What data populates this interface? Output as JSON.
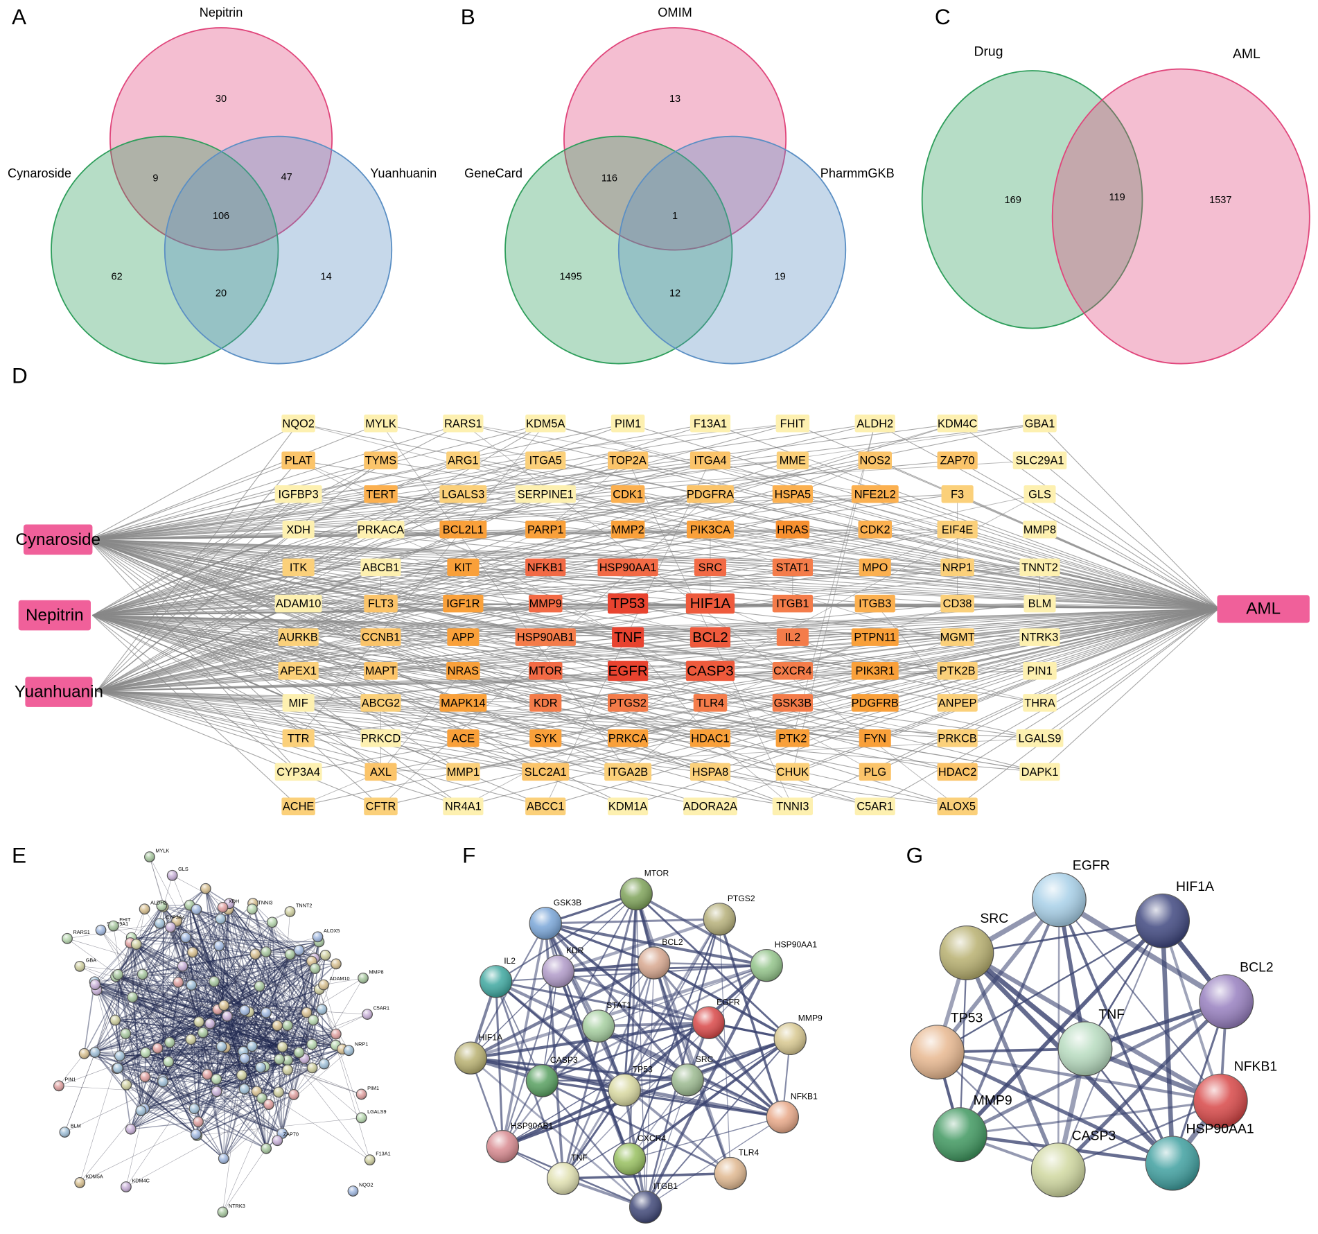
{
  "panels": {
    "a": {
      "letter": "A",
      "sets": {
        "top": "Nepitrin",
        "left": "Cynaroside",
        "right": "Yuanhuanin"
      },
      "regions": {
        "top": 30,
        "top_left": 9,
        "top_right": 47,
        "center": 106,
        "left": 62,
        "left_right": 20,
        "right": 14
      },
      "colors": {
        "top": "#e0457b",
        "left": "#2e9e5b",
        "right": "#5b8fc4"
      }
    },
    "b": {
      "letter": "B",
      "sets": {
        "top": "OMIM",
        "left": "GeneCard",
        "right": "PharmmGKB"
      },
      "regions": {
        "top": 13,
        "top_left": 116,
        "center": 1,
        "left": 1495,
        "left_right": 12,
        "right": 19
      },
      "colors": {
        "top": "#e0457b",
        "left": "#2e9e5b",
        "right": "#5b8fc4"
      }
    },
    "c": {
      "letter": "C",
      "sets": {
        "left": "Drug",
        "right": "AML"
      },
      "regions": {
        "left": 169,
        "center": 119,
        "right": 1537
      },
      "colors": {
        "left": "#2e9e5b",
        "right": "#e0457b"
      }
    },
    "d": {
      "letter": "D",
      "sources": [
        "Cynaroside",
        "Nepitrin",
        "Yuanhuanin"
      ],
      "target": "AML",
      "node_color": "#f0609a",
      "rows": [
        [
          {
            "label": "NQO2",
            "color": "#fdf0b0"
          },
          {
            "label": "MYLK",
            "color": "#fdf0b0"
          },
          {
            "label": "RARS1",
            "color": "#fdf0b0"
          },
          {
            "label": "KDM5A",
            "color": "#fdf0b0"
          },
          {
            "label": "PIM1",
            "color": "#fdf0b0"
          },
          {
            "label": "F13A1",
            "color": "#fdf0b0"
          },
          {
            "label": "FHIT",
            "color": "#fdf0b0"
          },
          {
            "label": "ALDH2",
            "color": "#fdf0b0"
          },
          {
            "label": "KDM4C",
            "color": "#fdf0b0"
          },
          {
            "label": "GBA1",
            "color": "#fdf0b0"
          }
        ],
        [
          {
            "label": "PLAT",
            "color": "#fbc46a"
          },
          {
            "label": "TYMS",
            "color": "#fbc46a"
          },
          {
            "label": "ARG1",
            "color": "#fbd07a"
          },
          {
            "label": "ITGA5",
            "color": "#fbd07a"
          },
          {
            "label": "TOP2A",
            "color": "#fbc46a"
          },
          {
            "label": "ITGA4",
            "color": "#fbc46a"
          },
          {
            "label": "MME",
            "color": "#fbd07a"
          },
          {
            "label": "NOS2",
            "color": "#fbc46a"
          },
          {
            "label": "ZAP70",
            "color": "#fbc46a"
          },
          {
            "label": "SLC29A1",
            "color": "#fdf0b0"
          }
        ],
        [
          {
            "label": "IGFBP3",
            "color": "#fdf0b0"
          },
          {
            "label": "TERT",
            "color": "#fbb050"
          },
          {
            "label": "LGALS3",
            "color": "#fbd07a"
          },
          {
            "label": "SERPINE1",
            "color": "#fdf0b0"
          },
          {
            "label": "CDK1",
            "color": "#fbb050"
          },
          {
            "label": "PDGFRA",
            "color": "#fbc46a"
          },
          {
            "label": "HSPA5",
            "color": "#fbb050"
          },
          {
            "label": "NFE2L2",
            "color": "#fbb050"
          },
          {
            "label": "F3",
            "color": "#fbd07a"
          },
          {
            "label": "GLS",
            "color": "#fdf0b0"
          }
        ],
        [
          {
            "label": "XDH",
            "color": "#fdf0b0"
          },
          {
            "label": "PRKACA",
            "color": "#fdf0b0"
          },
          {
            "label": "BCL2L1",
            "color": "#f9a03a"
          },
          {
            "label": "PARP1",
            "color": "#f9a03a"
          },
          {
            "label": "MMP2",
            "color": "#f9a03a"
          },
          {
            "label": "PIK3CA",
            "color": "#f9a03a"
          },
          {
            "label": "HRAS",
            "color": "#f79030"
          },
          {
            "label": "CDK2",
            "color": "#fbb050"
          },
          {
            "label": "EIF4E",
            "color": "#fbd07a"
          },
          {
            "label": "MMP8",
            "color": "#fdf0b0"
          }
        ],
        [
          {
            "label": "ITK",
            "color": "#fbd07a"
          },
          {
            "label": "ABCB1",
            "color": "#fdf0b0"
          },
          {
            "label": "KIT",
            "color": "#f9a03a"
          },
          {
            "label": "NFKB1",
            "color": "#f26a45"
          },
          {
            "label": "HSP90AA1",
            "color": "#f26a45"
          },
          {
            "label": "SRC",
            "color": "#f26a45"
          },
          {
            "label": "STAT1",
            "color": "#f47c4a"
          },
          {
            "label": "MPO",
            "color": "#fbb050"
          },
          {
            "label": "NRP1",
            "color": "#fbd07a"
          },
          {
            "label": "TNNT2",
            "color": "#fdf0b0"
          }
        ],
        [
          {
            "label": "ADAM10",
            "color": "#fdf0b0"
          },
          {
            "label": "FLT3",
            "color": "#fbc46a"
          },
          {
            "label": "IGF1R",
            "color": "#f9a03a"
          },
          {
            "label": "MMP9",
            "color": "#f26a45"
          },
          {
            "label": "TP53",
            "color": "#e8432f"
          },
          {
            "label": "HIF1A",
            "color": "#ee5a3c"
          },
          {
            "label": "ITGB1",
            "color": "#f47c4a"
          },
          {
            "label": "ITGB3",
            "color": "#fbb050"
          },
          {
            "label": "CD38",
            "color": "#fbd07a"
          },
          {
            "label": "BLM",
            "color": "#fdf0b0"
          }
        ],
        [
          {
            "label": "AURKB",
            "color": "#fbd07a"
          },
          {
            "label": "CCNB1",
            "color": "#fbc46a"
          },
          {
            "label": "APP",
            "color": "#f9a03a"
          },
          {
            "label": "HSP90AB1",
            "color": "#f47c4a"
          },
          {
            "label": "TNF",
            "color": "#e8432f"
          },
          {
            "label": "BCL2",
            "color": "#ee5a3c"
          },
          {
            "label": "IL2",
            "color": "#f47c4a"
          },
          {
            "label": "PTPN11",
            "color": "#f9a03a"
          },
          {
            "label": "MGMT",
            "color": "#fbd07a"
          },
          {
            "label": "NTRK3",
            "color": "#fdf0b0"
          }
        ],
        [
          {
            "label": "APEX1",
            "color": "#fbd07a"
          },
          {
            "label": "MAPT",
            "color": "#fbc46a"
          },
          {
            "label": "NRAS",
            "color": "#f9a03a"
          },
          {
            "label": "MTOR",
            "color": "#f26a45"
          },
          {
            "label": "EGFR",
            "color": "#e8432f"
          },
          {
            "label": "CASP3",
            "color": "#ee5a3c"
          },
          {
            "label": "CXCR4",
            "color": "#f47c4a"
          },
          {
            "label": "PIK3R1",
            "color": "#f9a03a"
          },
          {
            "label": "PTK2B",
            "color": "#fbd07a"
          },
          {
            "label": "PIN1",
            "color": "#fdf0b0"
          }
        ],
        [
          {
            "label": "MIF",
            "color": "#fdf0b0"
          },
          {
            "label": "ABCG2",
            "color": "#fbd07a"
          },
          {
            "label": "MAPK14",
            "color": "#f9a03a"
          },
          {
            "label": "KDR",
            "color": "#f47c4a"
          },
          {
            "label": "PTGS2",
            "color": "#f47c4a"
          },
          {
            "label": "TLR4",
            "color": "#f47c4a"
          },
          {
            "label": "GSK3B",
            "color": "#f47c4a"
          },
          {
            "label": "PDGFRB",
            "color": "#f9a03a"
          },
          {
            "label": "ANPEP",
            "color": "#fbd07a"
          },
          {
            "label": "THRA",
            "color": "#fdf0b0"
          }
        ],
        [
          {
            "label": "TTR",
            "color": "#fbd07a"
          },
          {
            "label": "PRKCD",
            "color": "#fdf0b0"
          },
          {
            "label": "ACE",
            "color": "#f9a03a"
          },
          {
            "label": "SYK",
            "color": "#f9a03a"
          },
          {
            "label": "PRKCA",
            "color": "#f9a03a"
          },
          {
            "label": "HDAC1",
            "color": "#f9a03a"
          },
          {
            "label": "PTK2",
            "color": "#f9a03a"
          },
          {
            "label": "FYN",
            "color": "#f9a03a"
          },
          {
            "label": "PRKCB",
            "color": "#fbd07a"
          },
          {
            "label": "LGALS9",
            "color": "#fdf0b0"
          }
        ],
        [
          {
            "label": "CYP3A4",
            "color": "#fdf0b0"
          },
          {
            "label": "AXL",
            "color": "#fbc46a"
          },
          {
            "label": "MMP1",
            "color": "#fbd07a"
          },
          {
            "label": "SLC2A1",
            "color": "#fbc46a"
          },
          {
            "label": "ITGA2B",
            "color": "#fbd07a"
          },
          {
            "label": "HSPA8",
            "color": "#fbd07a"
          },
          {
            "label": "CHUK",
            "color": "#fbd07a"
          },
          {
            "label": "PLG",
            "color": "#fbc46a"
          },
          {
            "label": "HDAC2",
            "color": "#fbc46a"
          },
          {
            "label": "DAPK1",
            "color": "#fdf0b0"
          }
        ],
        [
          {
            "label": "ACHE",
            "color": "#fbd07a"
          },
          {
            "label": "CFTR",
            "color": "#fbd07a"
          },
          {
            "label": "NR4A1",
            "color": "#fdf0b0"
          },
          {
            "label": "ABCC1",
            "color": "#fbd07a"
          },
          {
            "label": "KDM1A",
            "color": "#fdf0b0"
          },
          {
            "label": "ADORA2A",
            "color": "#fdf0b0"
          },
          {
            "label": "TNNI3",
            "color": "#fdf0b0"
          },
          {
            "label": "C5AR1",
            "color": "#fdf0b0"
          },
          {
            "label": "ALOX5",
            "color": "#fbd07a"
          }
        ]
      ]
    },
    "e": {
      "letter": "E",
      "labels": [
        "MYLK",
        "GLS",
        "ALDH2",
        "CYP3A4",
        "XDH",
        "TNNI3",
        "TNNT2",
        "ALOX5",
        "MMP8",
        "C5AR1",
        "ADAM10",
        "NRP1",
        "PIM1",
        "LGALS9",
        "F13A1",
        "NQO2",
        "NTRK3",
        "KDM4C",
        "KDM5A",
        "BLM",
        "PIN1",
        "RARS1",
        "GBA",
        "SLC29A1",
        "FHIT",
        "ZAP70"
      ]
    },
    "f": {
      "letter": "F",
      "nodes": [
        {
          "label": "MTOR",
          "color": "#7fa35a"
        },
        {
          "label": "PTGS2",
          "color": "#b6b07a"
        },
        {
          "label": "GSK3B",
          "color": "#7aa6d8"
        },
        {
          "label": "HSP90AA1",
          "color": "#93c48a"
        },
        {
          "label": "KDR",
          "color": "#b09ac8"
        },
        {
          "label": "BCL2",
          "color": "#d8a890"
        },
        {
          "label": "IL2",
          "color": "#3fa8a0"
        },
        {
          "label": "STAT1",
          "color": "#a6cfa0"
        },
        {
          "label": "EGFR",
          "color": "#d94848"
        },
        {
          "label": "MMP9",
          "color": "#d8c890"
        },
        {
          "label": "HIF1A",
          "color": "#b8b070"
        },
        {
          "label": "CASP3",
          "color": "#58a060"
        },
        {
          "label": "TP53",
          "color": "#d8d8a0"
        },
        {
          "label": "SRC",
          "color": "#9cba90"
        },
        {
          "label": "NFKB1",
          "color": "#e8a888"
        },
        {
          "label": "HSP90AB1",
          "color": "#d88a90"
        },
        {
          "label": "CXCR4",
          "color": "#98c060"
        },
        {
          "label": "TLR4",
          "color": "#e0b890"
        },
        {
          "label": "TNF",
          "color": "#e0e0b0"
        },
        {
          "label": "ITGB1",
          "color": "#404878"
        }
      ]
    },
    "g": {
      "letter": "G",
      "nodes": [
        {
          "label": "EGFR",
          "color": "#a8d0e8"
        },
        {
          "label": "HIF1A",
          "color": "#404880"
        },
        {
          "label": "SRC",
          "color": "#b8b070"
        },
        {
          "label": "BCL2",
          "color": "#9880c0"
        },
        {
          "label": "TP53",
          "color": "#e8b890"
        },
        {
          "label": "TNF",
          "color": "#b8dcc0"
        },
        {
          "label": "NFKB1",
          "color": "#d84848"
        },
        {
          "label": "MMP9",
          "color": "#409860"
        },
        {
          "label": "CASP3",
          "color": "#d0d8a0"
        },
        {
          "label": "HSP90AA1",
          "color": "#40a0a0"
        }
      ]
    }
  }
}
